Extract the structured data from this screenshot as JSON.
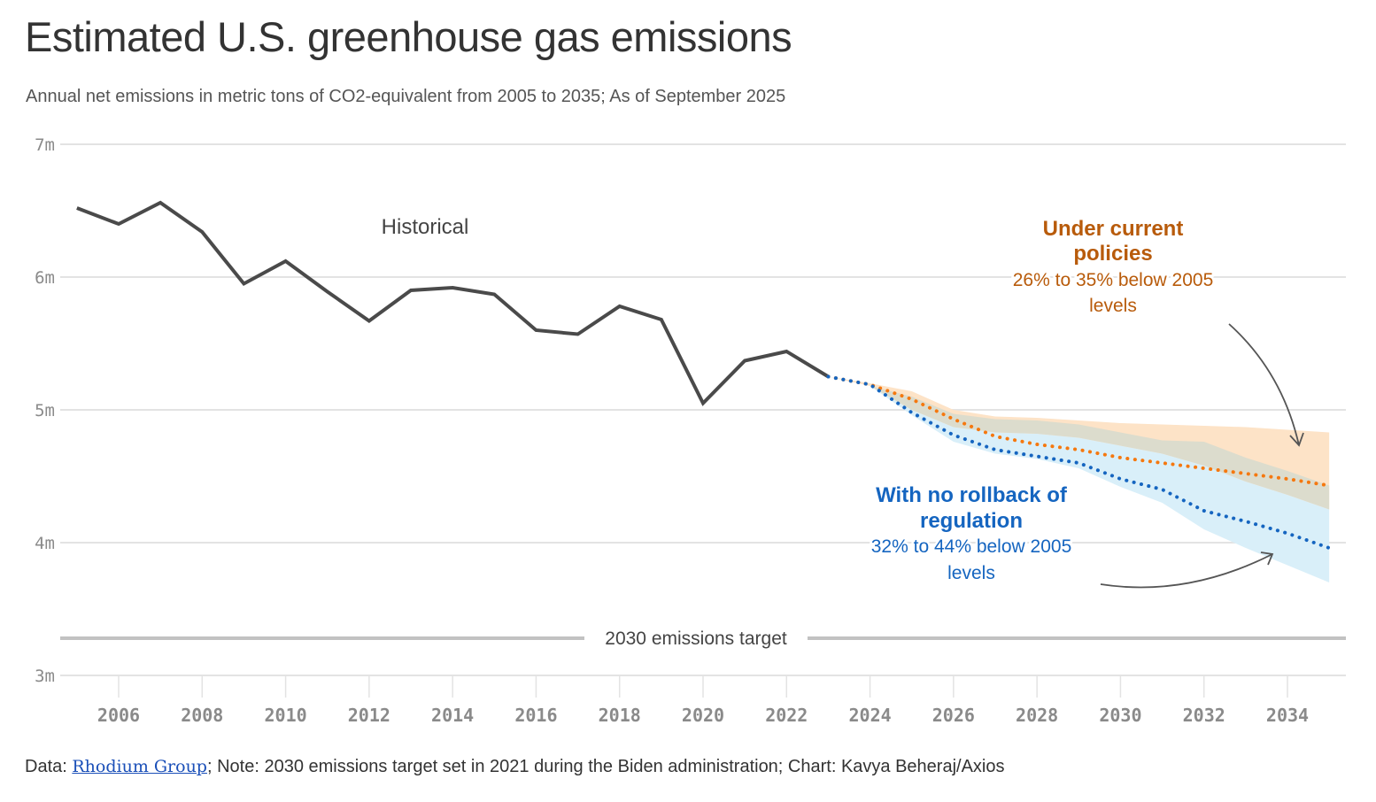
{
  "header": {
    "title": "Estimated U.S. greenhouse gas emissions",
    "subtitle": "Annual net emissions in metric tons of CO2-equivalent from 2005 to 2035; As of September 2025"
  },
  "footer": {
    "data_prefix": "Data: ",
    "source_link": "Rhodium Group",
    "rest": "; Note: 2030 emissions target set in 2021 during the Biden administration; Chart: Kavya Beheraj/Axios"
  },
  "colors": {
    "historical": "#4a4a4a",
    "current_policies": "#f5780f",
    "current_policies_text": "#b85b0b",
    "current_policies_band": "#fde3c7",
    "no_rollback": "#1565c0",
    "no_rollback_text": "#1565c0",
    "no_rollback_band": "#d9eff9",
    "overlap_band": "#dcdccd",
    "grid": "#e3e3e3",
    "target_line": "#c2c2c2"
  },
  "chart_data": {
    "type": "line",
    "title": "Estimated U.S. greenhouse gas emissions",
    "xlabel": "",
    "ylabel": "",
    "xlim": [
      2005,
      2035
    ],
    "ylim": [
      3,
      7
    ],
    "grid": true,
    "y_ticks": [
      {
        "value": 7,
        "label": "7m"
      },
      {
        "value": 6,
        "label": "6m"
      },
      {
        "value": 5,
        "label": "5m"
      },
      {
        "value": 4,
        "label": "4m"
      },
      {
        "value": 3,
        "label": "3m"
      }
    ],
    "x_ticks": [
      {
        "value": 2006,
        "label": "2006"
      },
      {
        "value": 2008,
        "label": "2008"
      },
      {
        "value": 2010,
        "label": "2010"
      },
      {
        "value": 2012,
        "label": "2012"
      },
      {
        "value": 2014,
        "label": "2014"
      },
      {
        "value": 2016,
        "label": "2016"
      },
      {
        "value": 2018,
        "label": "2018"
      },
      {
        "value": 2020,
        "label": "2020"
      },
      {
        "value": 2022,
        "label": "2022"
      },
      {
        "value": 2024,
        "label": "2024"
      },
      {
        "value": 2026,
        "label": "2026"
      },
      {
        "value": 2028,
        "label": "2028"
      },
      {
        "value": 2030,
        "label": "2030"
      },
      {
        "value": 2032,
        "label": "2032"
      },
      {
        "value": 2034,
        "label": "2034"
      }
    ],
    "series": [
      {
        "name": "Historical",
        "style": "solid",
        "x": [
          2005,
          2006,
          2007,
          2008,
          2009,
          2010,
          2011,
          2012,
          2013,
          2014,
          2015,
          2016,
          2017,
          2018,
          2019,
          2020,
          2021,
          2022,
          2023
        ],
        "values": [
          6.52,
          6.4,
          6.56,
          6.34,
          5.95,
          6.12,
          5.89,
          5.67,
          5.9,
          5.92,
          5.87,
          5.6,
          5.57,
          5.78,
          5.68,
          5.05,
          5.37,
          5.44,
          5.25
        ]
      },
      {
        "name": "Under current policies",
        "style": "dotted",
        "x": [
          2023,
          2024,
          2025,
          2026,
          2027,
          2028,
          2029,
          2030,
          2031,
          2032,
          2033,
          2034,
          2035
        ],
        "values": [
          5.25,
          5.19,
          5.08,
          4.93,
          4.8,
          4.74,
          4.7,
          4.64,
          4.6,
          4.56,
          4.52,
          4.48,
          4.43
        ],
        "band_upper": [
          5.25,
          5.2,
          5.14,
          5.0,
          4.95,
          4.94,
          4.92,
          4.9,
          4.89,
          4.88,
          4.87,
          4.85,
          4.83
        ],
        "band_lower": [
          5.25,
          5.18,
          5.0,
          4.87,
          4.83,
          4.82,
          4.79,
          4.73,
          4.67,
          4.58,
          4.46,
          4.36,
          4.25
        ]
      },
      {
        "name": "With no rollback of regulation",
        "style": "dotted",
        "x": [
          2023,
          2024,
          2025,
          2026,
          2027,
          2028,
          2029,
          2030,
          2031,
          2032,
          2033,
          2034,
          2035
        ],
        "values": [
          5.25,
          5.19,
          4.98,
          4.81,
          4.7,
          4.65,
          4.6,
          4.48,
          4.4,
          4.24,
          4.16,
          4.07,
          3.96
        ],
        "band_upper": [
          5.25,
          5.18,
          5.0,
          4.87,
          4.83,
          4.82,
          4.79,
          4.73,
          4.67,
          4.58,
          4.46,
          4.36,
          4.25
        ],
        "band_lower": [
          5.25,
          5.18,
          4.96,
          4.76,
          4.67,
          4.63,
          4.56,
          4.42,
          4.3,
          4.1,
          3.96,
          3.83,
          3.7
        ]
      }
    ],
    "reference_lines": [
      {
        "name": "2030 emissions target",
        "value": 3.28,
        "label": "2030 emissions target"
      }
    ],
    "annotations": [
      {
        "series": "Historical",
        "lines": [
          "Historical"
        ],
        "x": 2012.3,
        "y": 6.38
      },
      {
        "series": "Under current policies",
        "title_lines": [
          "Under current",
          "policies"
        ],
        "body_lines": [
          "26% to 35% below 2005",
          "levels"
        ],
        "x": 2031.0
      },
      {
        "series": "With no rollback of regulation",
        "title_lines": [
          "With no rollback of",
          "regulation"
        ],
        "body_lines": [
          "32% to 44% below 2005",
          "levels"
        ],
        "x": 2027.3
      }
    ]
  }
}
